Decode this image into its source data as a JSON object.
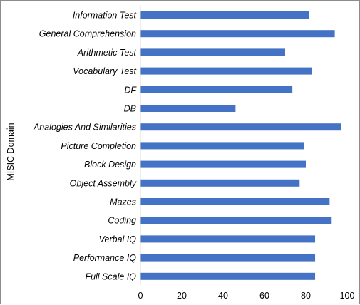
{
  "chart_data": {
    "type": "bar",
    "orientation": "horizontal",
    "title": "",
    "xlabel": "",
    "ylabel": "MISIC Domain",
    "xlim": [
      0,
      100
    ],
    "xticks": [
      0,
      20,
      40,
      60,
      80,
      100
    ],
    "grid": false,
    "legend": "none",
    "bar_color": "#4472c4",
    "categories": [
      "Information Test",
      "General Comprehension",
      "Arithmetic Test",
      "Vocabulary Test",
      "DF",
      "DB",
      "Analogies And Similarities",
      "Picture Completion",
      "Block Design",
      "Object Assembly",
      "Mazes",
      "Coding",
      "Verbal IQ",
      "Performance IQ",
      "Full Scale IQ"
    ],
    "values": [
      81.5,
      94,
      70,
      83,
      73.5,
      46,
      97,
      79,
      80,
      77,
      91.5,
      92.5,
      84.5,
      84.5,
      84.5
    ]
  }
}
